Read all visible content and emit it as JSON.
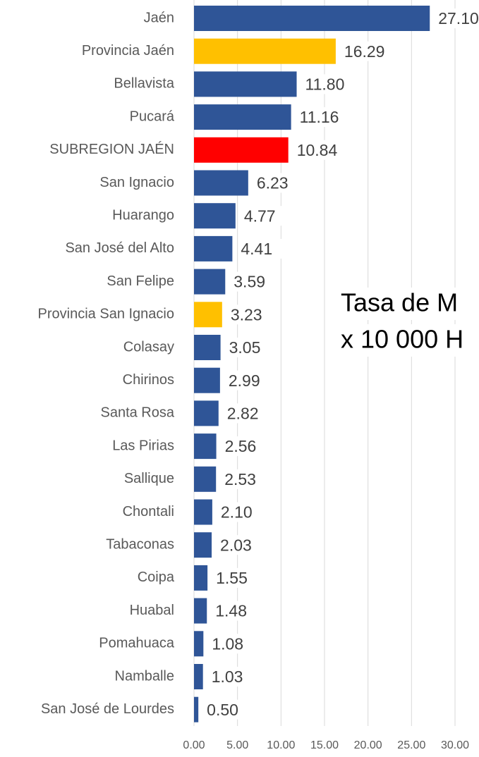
{
  "chart_data": {
    "type": "bar",
    "orientation": "horizontal",
    "annotations": [
      "Tasa de M",
      "x 10 000 H"
    ],
    "categories": [
      "Jaén",
      "Provincia Jaén",
      "Bellavista",
      "Pucará",
      "SUBREGION JAÉN",
      "San Ignacio",
      "Huarango",
      "San José del Alto",
      "San Felipe",
      "Provincia San Ignacio",
      "Colasay",
      "Chirinos",
      "Santa Rosa",
      "Las Pirias",
      "Sallique",
      "Chontali",
      "Tabaconas",
      "Coipa",
      "Huabal",
      "Pomahuaca",
      "Namballe",
      "San José de Lourdes"
    ],
    "values": [
      27.1,
      16.29,
      11.8,
      11.16,
      10.84,
      6.23,
      4.77,
      4.41,
      3.59,
      3.23,
      3.05,
      2.99,
      2.82,
      2.56,
      2.53,
      2.1,
      2.03,
      1.55,
      1.48,
      1.08,
      1.03,
      0.5
    ],
    "value_labels": [
      "27.10",
      "16.29",
      "11.80",
      "11.16",
      "10.84",
      "6.23",
      "4.77",
      "4.41",
      "3.59",
      "3.23",
      "3.05",
      "2.99",
      "2.82",
      "2.56",
      "2.53",
      "2.10",
      "2.03",
      "1.55",
      "1.48",
      "1.08",
      "1.03",
      "0.50"
    ],
    "colors": [
      "#2f5597",
      "#ffc000",
      "#2f5597",
      "#2f5597",
      "#ff0000",
      "#2f5597",
      "#2f5597",
      "#2f5597",
      "#2f5597",
      "#ffc000",
      "#2f5597",
      "#2f5597",
      "#2f5597",
      "#2f5597",
      "#2f5597",
      "#2f5597",
      "#2f5597",
      "#2f5597",
      "#2f5597",
      "#2f5597",
      "#2f5597",
      "#2f5597"
    ],
    "xlim": [
      0,
      30
    ],
    "xticks": [
      {
        "value": 0,
        "label": "0.00"
      },
      {
        "value": 5,
        "label": "5.00"
      },
      {
        "value": 10,
        "label": "10.00"
      },
      {
        "value": 15,
        "label": "15.00"
      },
      {
        "value": 20,
        "label": "20.00"
      },
      {
        "value": 25,
        "label": "25.00"
      },
      {
        "value": 30,
        "label": "30.00"
      }
    ],
    "grid": true
  }
}
